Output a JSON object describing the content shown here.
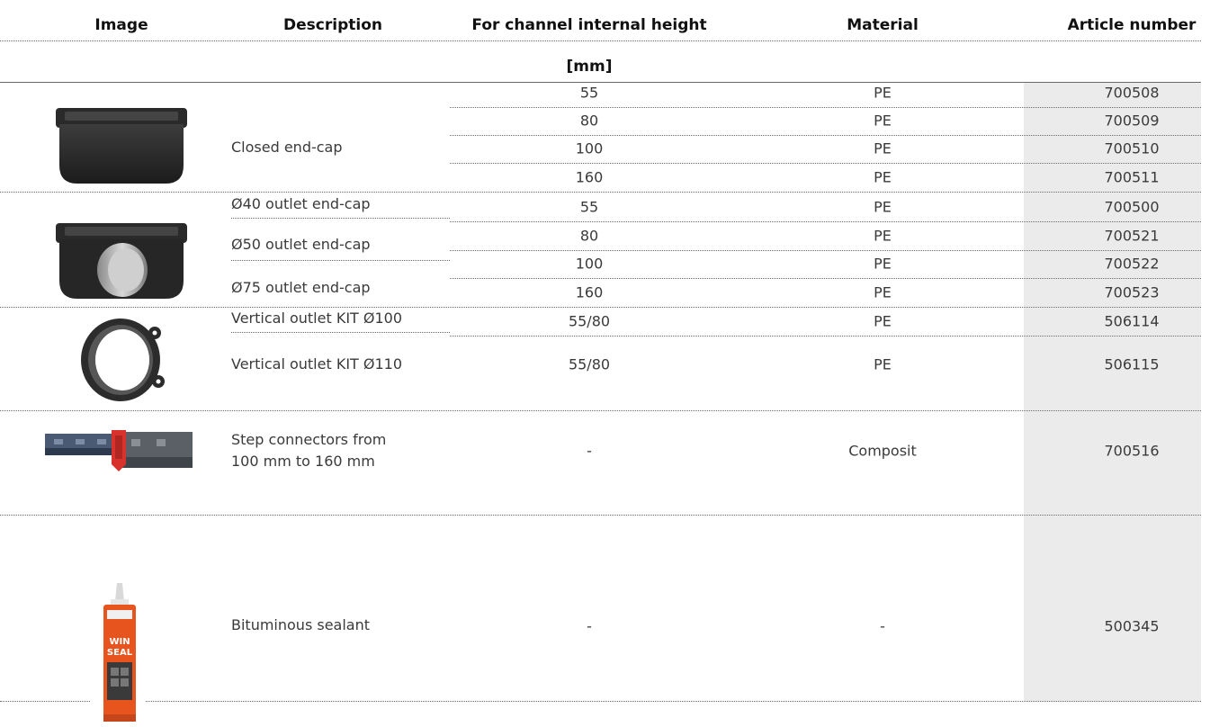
{
  "headers": {
    "image": "Image",
    "description": "Description",
    "height": "For channel internal height",
    "height_unit": "[mm]",
    "material": "Material",
    "article": "Article number"
  },
  "groups": [
    {
      "image_icon": "closed-end-cap-icon",
      "descriptions": [
        "Closed end-cap"
      ],
      "rows": [
        {
          "height": "55",
          "material": "PE",
          "article": "700508"
        },
        {
          "height": "80",
          "material": "PE",
          "article": "700509"
        },
        {
          "height": "100",
          "material": "PE",
          "article": "700510"
        },
        {
          "height": "160",
          "material": "PE",
          "article": "700511"
        }
      ]
    },
    {
      "image_icon": "outlet-end-cap-icon",
      "descriptions": [
        "Ø40 outlet end-cap",
        "Ø50 outlet end-cap",
        "Ø75 outlet end-cap"
      ],
      "rows": [
        {
          "height": "55",
          "material": "PE",
          "article": "700500"
        },
        {
          "height": "80",
          "material": "PE",
          "article": "700521"
        },
        {
          "height": "100",
          "material": "PE",
          "article": "700522"
        },
        {
          "height": "160",
          "material": "PE",
          "article": "700523"
        }
      ]
    },
    {
      "image_icon": "vertical-outlet-ring-icon",
      "descriptions": [
        "Vertical outlet KIT Ø100",
        "Vertical outlet KIT Ø110"
      ],
      "rows": [
        {
          "height": "55/80",
          "material": "PE",
          "article": "506114"
        },
        {
          "height": "55/80",
          "material": "PE",
          "article": "506115"
        }
      ]
    },
    {
      "image_icon": "step-connector-icon",
      "descriptions": [
        "Step connectors from",
        "100 mm to 160 mm"
      ],
      "rows": [
        {
          "height": "-",
          "material": "Composit",
          "article": "700516"
        }
      ]
    },
    {
      "image_icon": "sealant-tube-icon",
      "sealant_label": [
        "WIN",
        "SEAL"
      ],
      "descriptions": [
        "Bituminous sealant"
      ],
      "rows": [
        {
          "height": "-",
          "material": "-",
          "article": "500345"
        }
      ]
    }
  ]
}
